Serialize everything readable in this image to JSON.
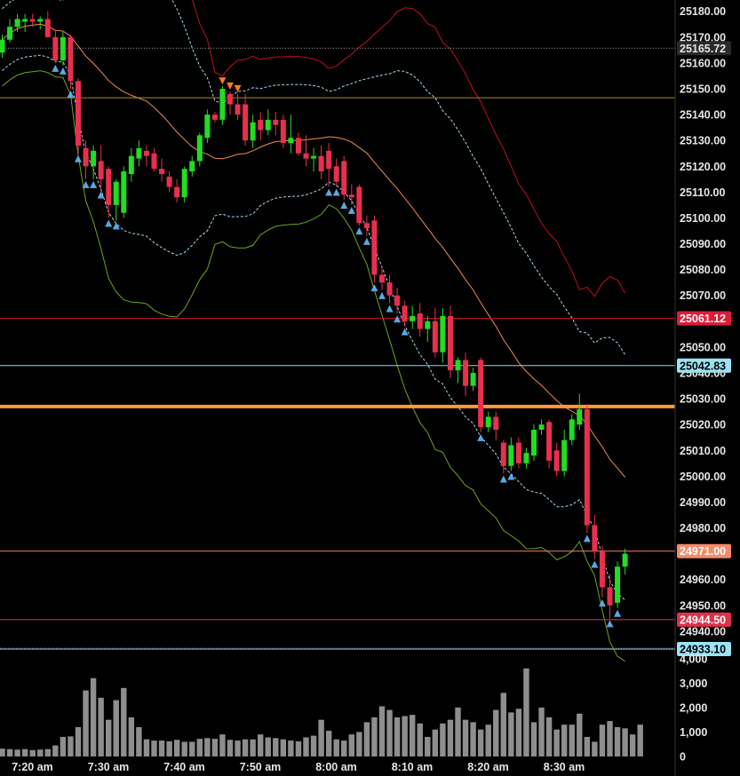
{
  "chart_data": {
    "type": "candlestick",
    "price_range": [
      24930,
      25183
    ],
    "volume_range": [
      0,
      4500
    ],
    "price_ticks": [
      25180,
      25170,
      25160,
      25150,
      25140,
      25130,
      25120,
      25110,
      25100,
      25090,
      25080,
      25070,
      25050,
      25040,
      25030,
      25020,
      25010,
      25000,
      24990,
      24980,
      24960,
      24950,
      24940
    ],
    "volume_ticks": [
      {
        "value": 4000,
        "label": "4,000"
      },
      {
        "value": 3000,
        "label": "3,000"
      },
      {
        "value": 2000,
        "label": "2,000"
      },
      {
        "value": 1000,
        "label": "1,000"
      },
      {
        "value": 0,
        "label": "0"
      }
    ],
    "time_labels": [
      {
        "index": 0,
        "label": "7:20 am"
      },
      {
        "index": 10,
        "label": "7:30 am"
      },
      {
        "index": 20,
        "label": "7:40 am"
      },
      {
        "index": 30,
        "label": "7:50 am"
      },
      {
        "index": 40,
        "label": "8:00 am"
      },
      {
        "index": 50,
        "label": "8:10 am"
      },
      {
        "index": 60,
        "label": "8:20 am"
      },
      {
        "index": 70,
        "label": "8:30 am"
      }
    ],
    "price_levels": [
      {
        "value": 25165.72,
        "label": "25165.72",
        "color": "#9a9a9a",
        "badge_bg": "#2a2a2a",
        "badge_fg": "#e6e6e6",
        "style": "dotted",
        "width": 1
      },
      {
        "value": 25146.5,
        "label": "",
        "color": "#b08a1a",
        "style": "solid",
        "width": 1
      },
      {
        "value": 25061.12,
        "label": "25061.12",
        "color": "#c0122c",
        "badge_bg": "#e01a3a",
        "badge_fg": "#ffffff",
        "style": "solid",
        "width": 1
      },
      {
        "value": 25042.83,
        "label": "25042.83",
        "color": "#8fd8ee",
        "badge_bg": "#9be3f5",
        "badge_fg": "#000000",
        "style": "solid",
        "width": 1
      },
      {
        "value": 25027.0,
        "label": "",
        "color": "#ff9a3c",
        "style": "solid",
        "width": 4
      },
      {
        "value": 24971.0,
        "label": "24971.00",
        "color": "#f08060",
        "badge_bg": "#f58a6a",
        "badge_fg": "#ffffff",
        "style": "solid",
        "width": 1
      },
      {
        "value": 24944.5,
        "label": "24944.50",
        "color": "#e0304a",
        "badge_bg": "#e0304a",
        "badge_fg": "#ffffff",
        "style": "solid",
        "width": 1
      },
      {
        "value": 24933.1,
        "label": "24933.10",
        "color": "#8fd8ee",
        "badge_bg": "#9be3f5",
        "badge_fg": "#000000",
        "style": "solid",
        "width": 1
      }
    ],
    "candles": [
      {
        "o": 25164,
        "h": 25171,
        "l": 25162,
        "c": 25169
      },
      {
        "o": 25169,
        "h": 25177,
        "l": 25168,
        "c": 25174
      },
      {
        "o": 25174,
        "h": 25179,
        "l": 25172,
        "c": 25177
      },
      {
        "o": 25176,
        "h": 25179,
        "l": 25172,
        "c": 25177
      },
      {
        "o": 25177,
        "h": 25179,
        "l": 25174,
        "c": 25176
      },
      {
        "o": 25176,
        "h": 25178,
        "l": 25173,
        "c": 25177
      },
      {
        "o": 25177,
        "h": 25180,
        "l": 25170,
        "c": 25170
      },
      {
        "o": 25170,
        "h": 25173,
        "l": 25160,
        "c": 25161
      },
      {
        "o": 25161,
        "h": 25172,
        "l": 25159,
        "c": 25170
      },
      {
        "o": 25170,
        "h": 25171,
        "l": 25150,
        "c": 25153
      },
      {
        "o": 25153,
        "h": 25154,
        "l": 25125,
        "c": 25128
      },
      {
        "o": 25127,
        "h": 25130,
        "l": 25115,
        "c": 25120
      },
      {
        "o": 25120,
        "h": 25128,
        "l": 25115,
        "c": 25126
      },
      {
        "o": 25122,
        "h": 25128,
        "l": 25111,
        "c": 25115
      },
      {
        "o": 25119,
        "h": 25120,
        "l": 25100,
        "c": 25105
      },
      {
        "o": 25105,
        "h": 25115,
        "l": 25099,
        "c": 25114
      },
      {
        "o": 25102,
        "h": 25120,
        "l": 25100,
        "c": 25118
      },
      {
        "o": 25117,
        "h": 25127,
        "l": 25114,
        "c": 25124
      },
      {
        "o": 25123,
        "h": 25130,
        "l": 25120,
        "c": 25127
      },
      {
        "o": 25126,
        "h": 25128,
        "l": 25120,
        "c": 25124
      },
      {
        "o": 25125,
        "h": 25127,
        "l": 25118,
        "c": 25119
      },
      {
        "o": 25119,
        "h": 25123,
        "l": 25114,
        "c": 25117
      },
      {
        "o": 25116,
        "h": 25118,
        "l": 25110,
        "c": 25112
      },
      {
        "o": 25112,
        "h": 25115,
        "l": 25106,
        "c": 25108
      },
      {
        "o": 25108,
        "h": 25120,
        "l": 25106,
        "c": 25119
      },
      {
        "o": 25118,
        "h": 25124,
        "l": 25116,
        "c": 25122
      },
      {
        "o": 25122,
        "h": 25133,
        "l": 25120,
        "c": 25132
      },
      {
        "o": 25131,
        "h": 25142,
        "l": 25129,
        "c": 25140
      },
      {
        "o": 25140,
        "h": 25141,
        "l": 25137,
        "c": 25138
      },
      {
        "o": 25138,
        "h": 25151,
        "l": 25136,
        "c": 25150
      },
      {
        "o": 25148,
        "h": 25149,
        "l": 25140,
        "c": 25144
      },
      {
        "o": 25144,
        "h": 25148,
        "l": 25138,
        "c": 25140
      },
      {
        "o": 25144,
        "h": 25148,
        "l": 25128,
        "c": 25130
      },
      {
        "o": 25130,
        "h": 25140,
        "l": 25127,
        "c": 25137
      },
      {
        "o": 25138,
        "h": 25141,
        "l": 25130,
        "c": 25134
      },
      {
        "o": 25134,
        "h": 25142,
        "l": 25132,
        "c": 25138
      },
      {
        "o": 25138,
        "h": 25141,
        "l": 25132,
        "c": 25136
      },
      {
        "o": 25138,
        "h": 25140,
        "l": 25127,
        "c": 25129
      },
      {
        "o": 25129,
        "h": 25140,
        "l": 25125,
        "c": 25131
      },
      {
        "o": 25131,
        "h": 25133,
        "l": 25124,
        "c": 25125
      },
      {
        "o": 25125,
        "h": 25132,
        "l": 25120,
        "c": 25123
      },
      {
        "o": 25123,
        "h": 25127,
        "l": 25118,
        "c": 25124
      },
      {
        "o": 25124,
        "h": 25128,
        "l": 25115,
        "c": 25118
      },
      {
        "o": 25126,
        "h": 25129,
        "l": 25112,
        "c": 25119
      },
      {
        "o": 25120,
        "h": 25123,
        "l": 25112,
        "c": 25114
      },
      {
        "o": 25122,
        "h": 25124,
        "l": 25107,
        "c": 25109
      },
      {
        "o": 25109,
        "h": 25113,
        "l": 25105,
        "c": 25108
      },
      {
        "o": 25112,
        "h": 25113,
        "l": 25097,
        "c": 25098
      },
      {
        "o": 25098,
        "h": 25101,
        "l": 25093,
        "c": 25096
      },
      {
        "o": 25099,
        "h": 25101,
        "l": 25075,
        "c": 25078
      },
      {
        "o": 25078,
        "h": 25081,
        "l": 25072,
        "c": 25075
      },
      {
        "o": 25075,
        "h": 25078,
        "l": 25067,
        "c": 25070
      },
      {
        "o": 25070,
        "h": 25073,
        "l": 25063,
        "c": 25066
      },
      {
        "o": 25066,
        "h": 25068,
        "l": 25058,
        "c": 25060
      },
      {
        "o": 25060,
        "h": 25066,
        "l": 25057,
        "c": 25062
      },
      {
        "o": 25063,
        "h": 25067,
        "l": 25054,
        "c": 25057
      },
      {
        "o": 25057,
        "h": 25062,
        "l": 25052,
        "c": 25060
      },
      {
        "o": 25060,
        "h": 25065,
        "l": 25046,
        "c": 25048
      },
      {
        "o": 25048,
        "h": 25065,
        "l": 25044,
        "c": 25062
      },
      {
        "o": 25062,
        "h": 25066,
        "l": 25038,
        "c": 25041
      },
      {
        "o": 25041,
        "h": 25046,
        "l": 25036,
        "c": 25045
      },
      {
        "o": 25045,
        "h": 25048,
        "l": 25031,
        "c": 25035
      },
      {
        "o": 25035,
        "h": 25042,
        "l": 25033,
        "c": 25040
      },
      {
        "o": 25045,
        "h": 25046,
        "l": 25017,
        "c": 25019
      },
      {
        "o": 25019,
        "h": 25025,
        "l": 25017,
        "c": 25023
      },
      {
        "o": 25023,
        "h": 25025,
        "l": 25014,
        "c": 25018
      },
      {
        "o": 25013,
        "h": 25014,
        "l": 25001,
        "c": 25004
      },
      {
        "o": 25004,
        "h": 25015,
        "l": 25002,
        "c": 25012
      },
      {
        "o": 25013,
        "h": 25015,
        "l": 25003,
        "c": 25005
      },
      {
        "o": 25005,
        "h": 25011,
        "l": 25003,
        "c": 25009
      },
      {
        "o": 25008,
        "h": 25020,
        "l": 25006,
        "c": 25018
      },
      {
        "o": 25018,
        "h": 25022,
        "l": 25016,
        "c": 25020
      },
      {
        "o": 25021,
        "h": 25022,
        "l": 25003,
        "c": 25006
      },
      {
        "o": 25010,
        "h": 25013,
        "l": 25000,
        "c": 25002
      },
      {
        "o": 25002,
        "h": 25018,
        "l": 25000,
        "c": 25014
      },
      {
        "o": 25014,
        "h": 25024,
        "l": 25012,
        "c": 25022
      },
      {
        "o": 25020,
        "h": 25032,
        "l": 25018,
        "c": 25026
      },
      {
        "o": 25026,
        "h": 25028,
        "l": 24978,
        "c": 24981
      },
      {
        "o": 24981,
        "h": 24985,
        "l": 24968,
        "c": 24971
      },
      {
        "o": 24971,
        "h": 24973,
        "l": 24953,
        "c": 24957
      },
      {
        "o": 24957,
        "h": 24962,
        "l": 24945,
        "c": 24950
      },
      {
        "o": 24951,
        "h": 24967,
        "l": 24949,
        "c": 24965
      },
      {
        "o": 24965,
        "h": 24972,
        "l": 24962,
        "c": 24970
      }
    ],
    "volume": [
      320,
      300,
      280,
      300,
      260,
      280,
      300,
      450,
      800,
      820,
      1200,
      2700,
      3200,
      2400,
      1500,
      2300,
      2800,
      1600,
      1200,
      700,
      650,
      650,
      620,
      680,
      600,
      600,
      720,
      750,
      720,
      900,
      680,
      650,
      700,
      700,
      900,
      780,
      750,
      700,
      650,
      620,
      780,
      850,
      1500,
      1050,
      700,
      650,
      900,
      1000,
      1400,
      1600,
      2050,
      1900,
      1600,
      1650,
      1700,
      1350,
      800,
      1100,
      1350,
      1500,
      2000,
      1500,
      1400,
      1100,
      1300,
      1900,
      2600,
      1800,
      1950,
      3600,
      1400,
      2000,
      1600,
      1100,
      1300,
      1300,
      1750,
      800,
      600,
      1300,
      1450,
      1200,
      1150,
      900,
      1300
    ]
  }
}
